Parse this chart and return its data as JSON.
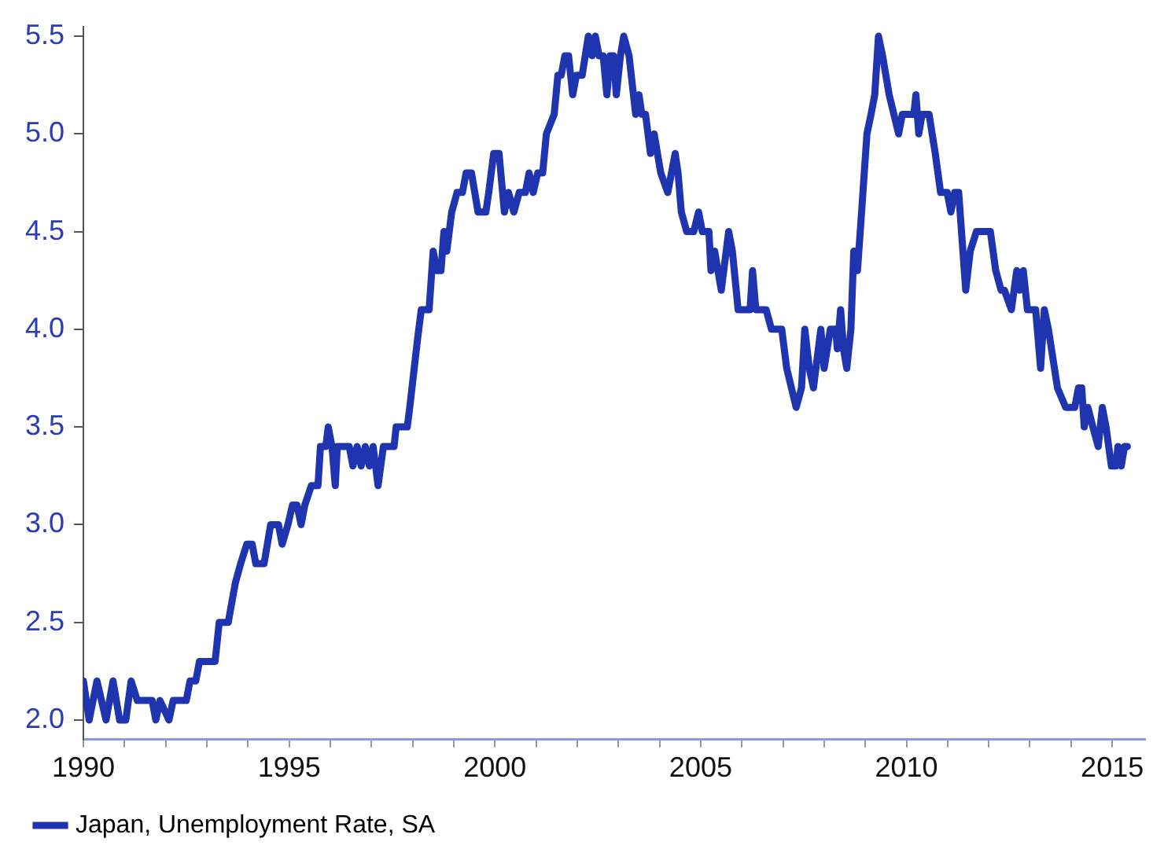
{
  "chart_data": {
    "type": "line",
    "x": [
      1990.0,
      1990.14,
      1990.33,
      1990.55,
      1990.72,
      1990.88,
      1991.03,
      1991.16,
      1991.31,
      1991.67,
      1991.76,
      1991.86,
      1992.08,
      1992.18,
      1992.5,
      1992.59,
      1992.73,
      1992.82,
      1993.2,
      1993.3,
      1993.52,
      1993.69,
      1993.82,
      1993.97,
      1994.1,
      1994.19,
      1994.39,
      1994.55,
      1994.74,
      1994.83,
      1994.97,
      1995.08,
      1995.19,
      1995.29,
      1995.38,
      1995.54,
      1995.7,
      1995.76,
      1995.89,
      1995.95,
      1996.04,
      1996.12,
      1996.17,
      1996.46,
      1996.55,
      1996.65,
      1996.75,
      1996.85,
      1996.95,
      1997.04,
      1997.16,
      1997.29,
      1997.55,
      1997.6,
      1997.87,
      1997.93,
      1998.12,
      1998.21,
      1998.4,
      1998.5,
      1998.59,
      1998.69,
      1998.76,
      1998.83,
      1998.95,
      1999.08,
      1999.21,
      1999.3,
      1999.43,
      1999.59,
      1999.78,
      1999.85,
      1999.97,
      2000.1,
      2000.23,
      2000.33,
      2000.46,
      2000.59,
      2000.74,
      2000.83,
      2000.93,
      2001.04,
      2001.16,
      2001.25,
      2001.44,
      2001.53,
      2001.61,
      2001.7,
      2001.79,
      2001.89,
      2001.98,
      2002.12,
      2002.27,
      2002.36,
      2002.44,
      2002.53,
      2002.63,
      2002.72,
      2002.8,
      2002.88,
      2002.95,
      2003.05,
      2003.13,
      2003.26,
      2003.42,
      2003.5,
      2003.57,
      2003.66,
      2003.78,
      2003.87,
      2004.03,
      2004.2,
      2004.38,
      2004.45,
      2004.53,
      2004.66,
      2004.83,
      2004.95,
      2005.04,
      2005.2,
      2005.25,
      2005.34,
      2005.5,
      2005.68,
      2005.77,
      2005.91,
      2006.2,
      2006.26,
      2006.34,
      2006.59,
      2006.72,
      2006.97,
      2007.09,
      2007.32,
      2007.45,
      2007.53,
      2007.64,
      2007.74,
      2007.92,
      2008.0,
      2008.15,
      2008.28,
      2008.32,
      2008.4,
      2008.47,
      2008.55,
      2008.65,
      2008.72,
      2008.81,
      2008.91,
      2009.04,
      2009.14,
      2009.23,
      2009.32,
      2009.42,
      2009.58,
      2009.81,
      2009.9,
      2010.18,
      2010.23,
      2010.3,
      2010.38,
      2010.55,
      2010.7,
      2010.83,
      2010.99,
      2011.08,
      2011.17,
      2011.27,
      2011.44,
      2011.55,
      2011.7,
      2012.04,
      2012.17,
      2012.3,
      2012.38,
      2012.55,
      2012.68,
      2012.75,
      2012.84,
      2012.94,
      2013.14,
      2013.26,
      2013.35,
      2013.45,
      2013.67,
      2013.87,
      2014.09,
      2014.18,
      2014.26,
      2014.32,
      2014.41,
      2014.53,
      2014.66,
      2014.76,
      2014.85,
      2014.98,
      2015.09,
      2015.14,
      2015.22,
      2015.3,
      2015.37
    ],
    "series": [
      {
        "name": "Japan, Unemployment Rate, SA",
        "color": "#1f35b0",
        "values": [
          2.2,
          2.0,
          2.2,
          2.0,
          2.2,
          2.0,
          2.0,
          2.2,
          2.1,
          2.1,
          2.0,
          2.1,
          2.0,
          2.1,
          2.1,
          2.2,
          2.2,
          2.3,
          2.3,
          2.5,
          2.5,
          2.7,
          2.8,
          2.9,
          2.9,
          2.8,
          2.8,
          3.0,
          3.0,
          2.9,
          3.0,
          3.1,
          3.1,
          3.0,
          3.1,
          3.2,
          3.2,
          3.4,
          3.4,
          3.5,
          3.4,
          3.2,
          3.4,
          3.4,
          3.3,
          3.4,
          3.3,
          3.4,
          3.3,
          3.4,
          3.2,
          3.4,
          3.4,
          3.5,
          3.5,
          3.6,
          3.95,
          4.1,
          4.1,
          4.4,
          4.3,
          4.3,
          4.5,
          4.4,
          4.6,
          4.7,
          4.7,
          4.8,
          4.8,
          4.6,
          4.6,
          4.7,
          4.9,
          4.9,
          4.6,
          4.7,
          4.6,
          4.7,
          4.7,
          4.8,
          4.7,
          4.8,
          4.8,
          5.0,
          5.1,
          5.3,
          5.3,
          5.4,
          5.4,
          5.2,
          5.3,
          5.3,
          5.5,
          5.4,
          5.5,
          5.4,
          5.4,
          5.2,
          5.4,
          5.4,
          5.2,
          5.4,
          5.5,
          5.4,
          5.1,
          5.2,
          5.1,
          5.1,
          4.9,
          5.0,
          4.8,
          4.7,
          4.9,
          4.8,
          4.6,
          4.5,
          4.5,
          4.6,
          4.5,
          4.5,
          4.3,
          4.4,
          4.2,
          4.5,
          4.4,
          4.1,
          4.1,
          4.3,
          4.1,
          4.1,
          4.0,
          4.0,
          3.8,
          3.6,
          3.7,
          4.0,
          3.8,
          3.7,
          4.0,
          3.8,
          4.0,
          4.0,
          3.9,
          4.1,
          3.9,
          3.8,
          4.0,
          4.4,
          4.3,
          4.6,
          5.0,
          5.1,
          5.2,
          5.5,
          5.4,
          5.2,
          5.0,
          5.1,
          5.1,
          5.2,
          5.0,
          5.1,
          5.1,
          4.9,
          4.7,
          4.7,
          4.6,
          4.7,
          4.7,
          4.2,
          4.4,
          4.5,
          4.5,
          4.3,
          4.2,
          4.2,
          4.1,
          4.3,
          4.2,
          4.3,
          4.1,
          4.1,
          3.8,
          4.1,
          4.0,
          3.7,
          3.6,
          3.6,
          3.7,
          3.7,
          3.5,
          3.6,
          3.5,
          3.4,
          3.6,
          3.5,
          3.3,
          3.3,
          3.4,
          3.3,
          3.4,
          3.4
        ]
      }
    ],
    "xlim": [
      1990,
      2015.8
    ],
    "xticks": [
      1990,
      {
        "value": 1991,
        "label": null
      },
      {
        "value": 1992,
        "label": null
      },
      {
        "value": 1993,
        "label": null
      },
      {
        "value": 1994,
        "label": null
      },
      1995,
      {
        "value": 1996,
        "label": null
      },
      {
        "value": 1997,
        "label": null
      },
      {
        "value": 1998,
        "label": null
      },
      {
        "value": 1999,
        "label": null
      },
      2000,
      {
        "value": 2001,
        "label": null
      },
      {
        "value": 2002,
        "label": null
      },
      {
        "value": 2003,
        "label": null
      },
      {
        "value": 2004,
        "label": null
      },
      2005,
      {
        "value": 2006,
        "label": null
      },
      {
        "value": 2007,
        "label": null
      },
      {
        "value": 2008,
        "label": null
      },
      {
        "value": 2009,
        "label": null
      },
      2010,
      {
        "value": 2011,
        "label": null
      },
      {
        "value": 2012,
        "label": null
      },
      {
        "value": 2013,
        "label": null
      },
      {
        "value": 2014,
        "label": null
      },
      2015
    ],
    "ylim": [
      1.9,
      5.55
    ],
    "yticks": [
      {
        "value": 2.0,
        "label": "2.0"
      },
      2.5,
      {
        "value": 3.0,
        "label": "3.0"
      },
      3.5,
      {
        "value": 4.0,
        "label": "4.0"
      },
      4.5,
      {
        "value": 5.0,
        "label": "5.0"
      },
      5.5
    ],
    "grid": false,
    "legend": "bottom left",
    "marker": "none",
    "line_style": "solid"
  }
}
